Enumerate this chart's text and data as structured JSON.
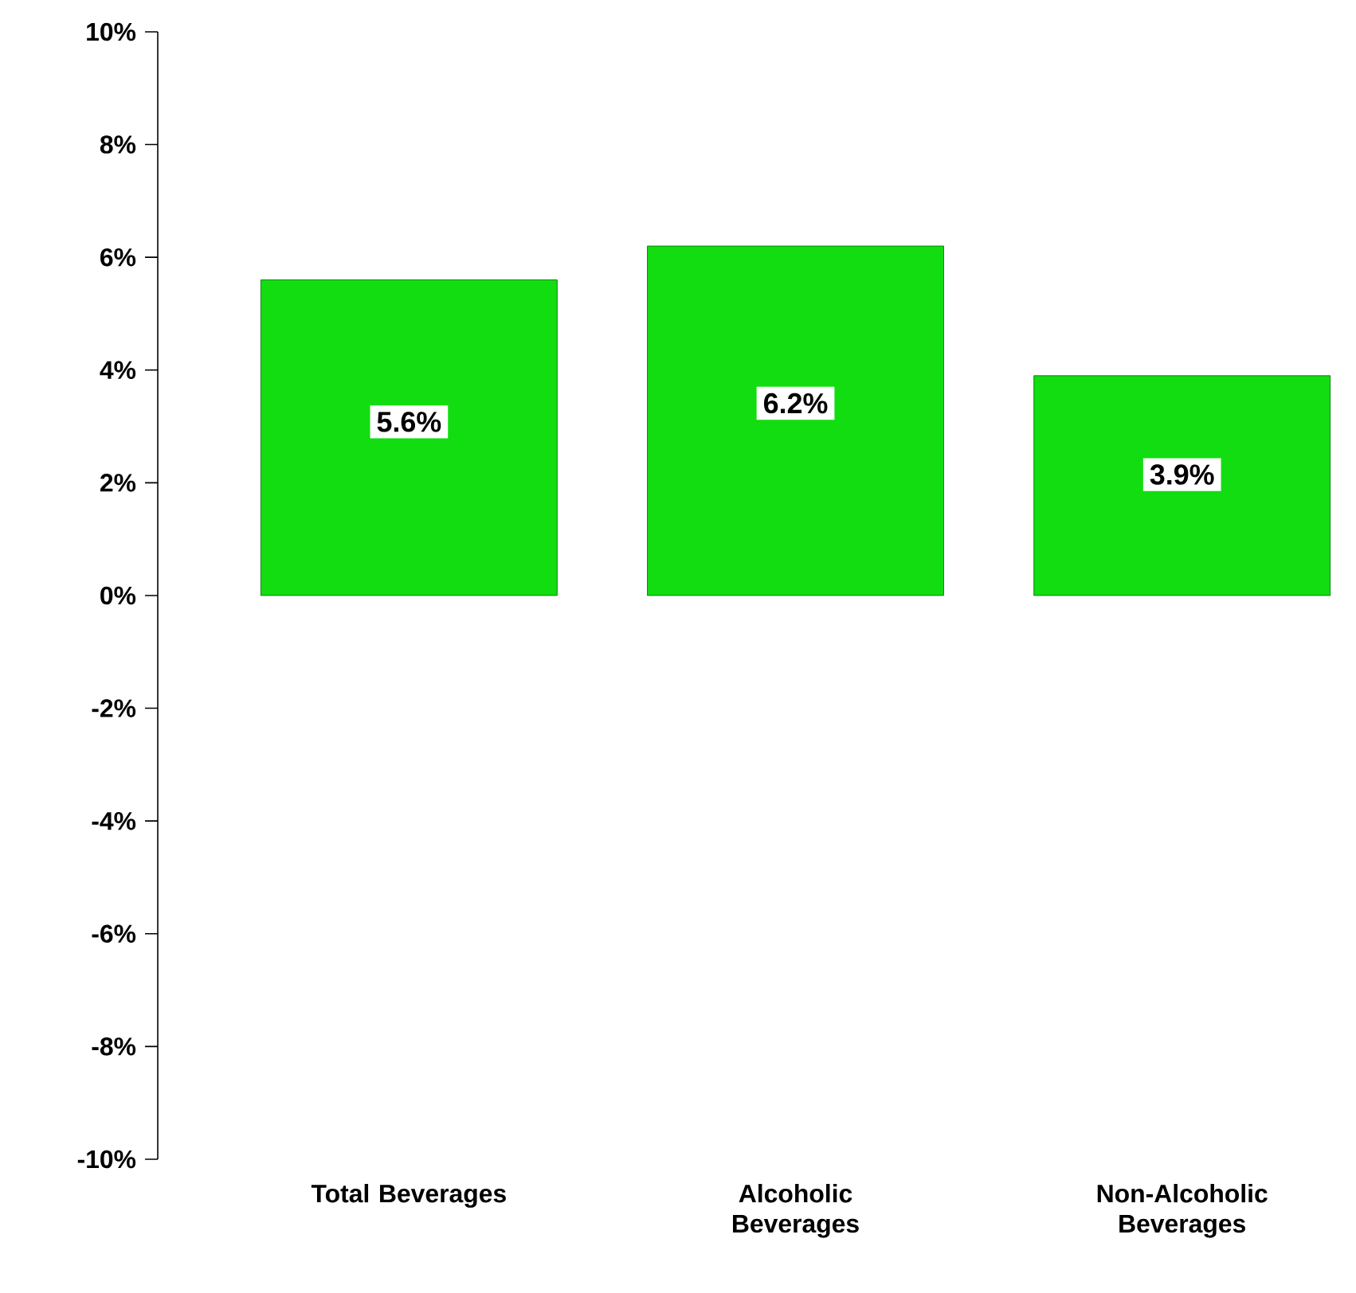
{
  "chart_data": {
    "type": "bar",
    "categories": [
      "Total Beverages",
      "Alcoholic Beverages",
      "Non-Alcoholic Beverages"
    ],
    "values": [
      5.6,
      6.2,
      3.9
    ],
    "value_labels": [
      "5.6%",
      "6.2%",
      "3.9%"
    ],
    "color": "#11dd11",
    "ylim": [
      -10,
      10
    ],
    "yticks": [
      {
        "value": -10,
        "label": "-10%"
      },
      {
        "value": -8,
        "label": "-8%"
      },
      {
        "value": -6,
        "label": "-6%"
      },
      {
        "value": -4,
        "label": "-4%"
      },
      {
        "value": -2,
        "label": "-2%"
      },
      {
        "value": 0,
        "label": "0%"
      },
      {
        "value": 2,
        "label": "2%"
      },
      {
        "value": 4,
        "label": "4%"
      },
      {
        "value": 6,
        "label": "6%"
      },
      {
        "value": 8,
        "label": "8%"
      },
      {
        "value": 10,
        "label": "10%"
      }
    ],
    "grid": false
  }
}
